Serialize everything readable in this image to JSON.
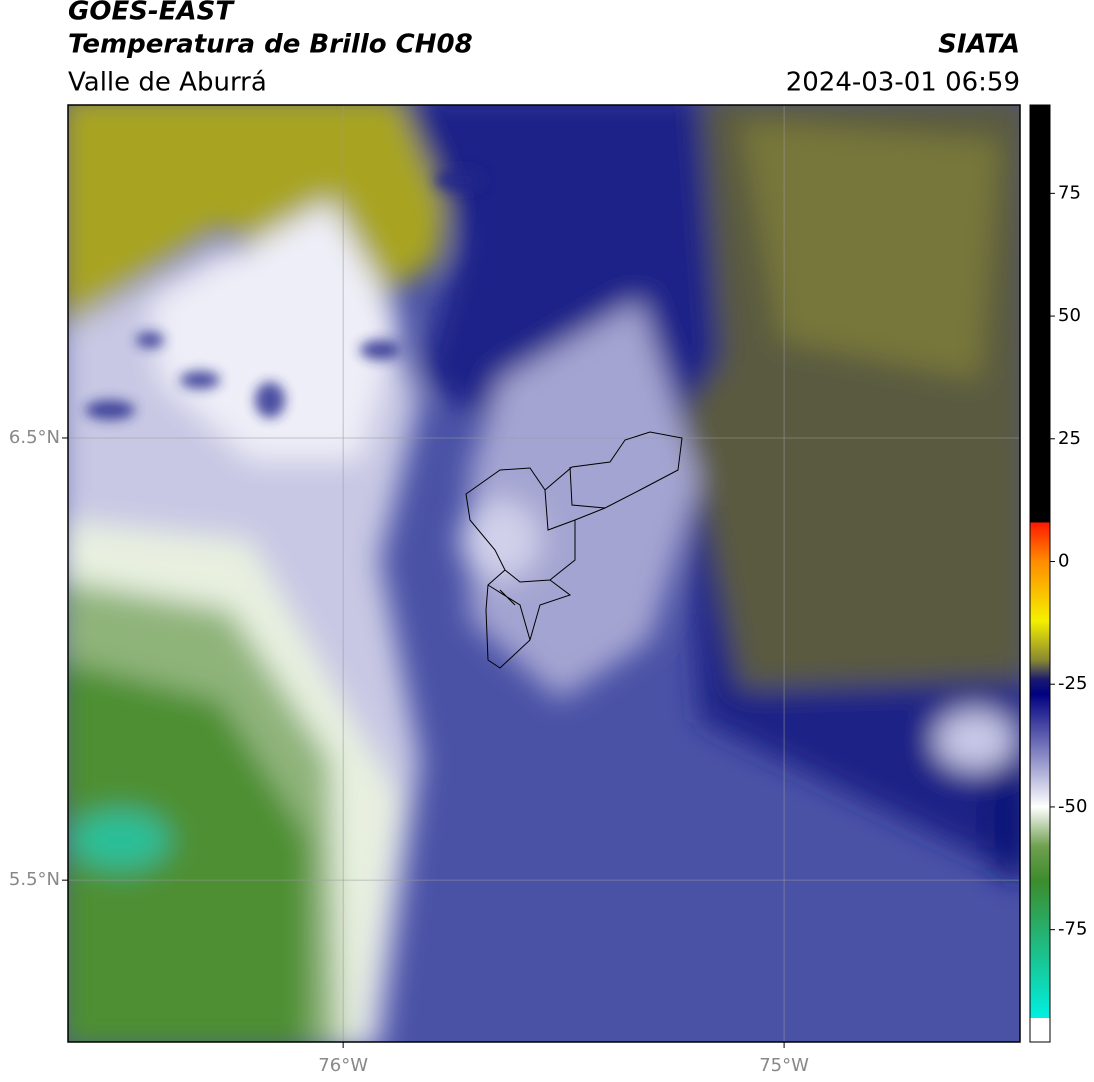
{
  "header": {
    "title": "GOES-EAST",
    "subtitle": "Temperatura de Brillo CH08",
    "region": "Valle de Aburrá",
    "source": "SIATA",
    "datetime": "2024-03-01 06:59"
  },
  "map": {
    "xlim": [
      -76.624,
      -74.465
    ],
    "ylim": [
      5.134,
      7.253
    ],
    "xticks": [
      {
        "value": -76,
        "label": "76°W"
      },
      {
        "value": -75,
        "label": "75°W"
      }
    ],
    "yticks": [
      {
        "value": 6.5,
        "label": "6.5°N"
      },
      {
        "value": 5.5,
        "label": "5.5°N"
      }
    ],
    "grid": true
  },
  "colorbar": {
    "lim": [
      -93,
      93
    ],
    "ticks": [
      75,
      50,
      25,
      0,
      -25,
      -50,
      -75
    ],
    "colors": [
      {
        "value": 93,
        "color": "#000000"
      },
      {
        "value": 8,
        "color": "#000000"
      },
      {
        "value": 7.9,
        "color": "#ff1a00"
      },
      {
        "value": 0,
        "color": "#ff8c00"
      },
      {
        "value": -12,
        "color": "#f5f000"
      },
      {
        "value": -20,
        "color": "#8a8a30"
      },
      {
        "value": -24,
        "color": "#1a1a70"
      },
      {
        "value": -27,
        "color": "#000080"
      },
      {
        "value": -40,
        "color": "#8e8ec8"
      },
      {
        "value": -50,
        "color": "#ffffff"
      },
      {
        "value": -58,
        "color": "#6fa050"
      },
      {
        "value": -65,
        "color": "#3c8c2c"
      },
      {
        "value": -93,
        "color": "#00f0e0"
      }
    ]
  }
}
